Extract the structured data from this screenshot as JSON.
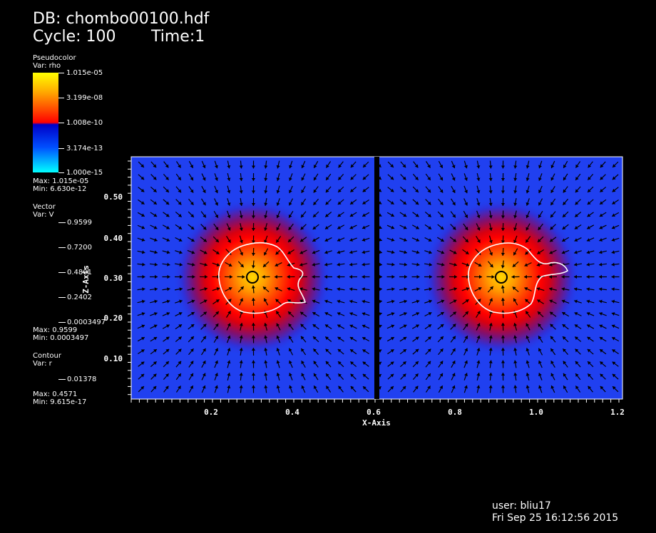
{
  "header": {
    "db": "DB: chombo00100.hdf",
    "cycle": "Cycle: 100",
    "time": "Time:1"
  },
  "pseudocolor": {
    "title": "Pseudocolor",
    "var": "Var: rho",
    "ticks": [
      "1.015e-05",
      "3.199e-08",
      "1.008e-10",
      "3.174e-13",
      "1.000e-15"
    ],
    "max": "Max:  1.015e-05",
    "min": "Min:  6.630e-12",
    "colors": [
      "#ffff00",
      "#ff0000",
      "#0000c8",
      "#00ffff"
    ]
  },
  "vector": {
    "title": "Vector",
    "var": "Var: V",
    "ticks": [
      "0.9599",
      "0.7200",
      "0.4801",
      "0.2402",
      "0.0003497"
    ],
    "max": "Max: 0.9599",
    "min": "Min: 0.0003497"
  },
  "contour": {
    "title": "Contour",
    "var": "Var: r",
    "ticks": [
      "0.01378"
    ],
    "max": "Max:  0.4571",
    "min": "Min: 9.615e-17"
  },
  "plot": {
    "x_axis_title": "X-Axis",
    "z_axis_title": "Z-Axis",
    "x_ticks": [
      "0.2",
      "0.4",
      "0.6",
      "0.8",
      "1.0",
      "1.2"
    ],
    "z_ticks": [
      "0.50",
      "0.40",
      "0.30",
      "0.20",
      "0.10"
    ],
    "background_color": "#2040f0",
    "blob_centers_x": [
      0.3,
      0.91
    ],
    "blob_center_z": 0.3
  },
  "footer": {
    "user": "user: bliu17",
    "date": "Fri Sep 25 16:12:56 2015"
  }
}
